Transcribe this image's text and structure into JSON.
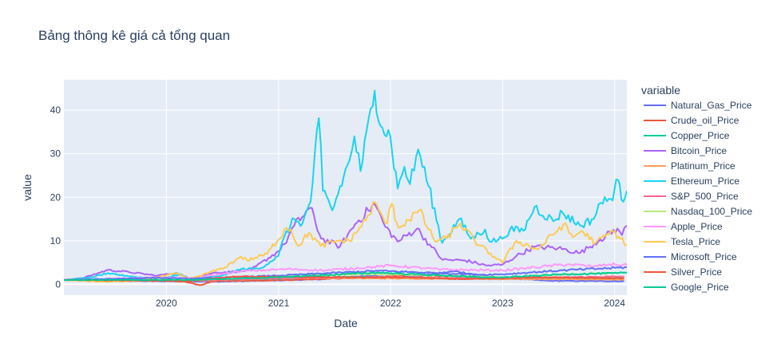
{
  "chart_data": {
    "type": "line",
    "title": "Bảng thông kê giá cả tổng quan",
    "xlabel": "Date",
    "ylabel": "value",
    "x_range": [
      "2019-02-01",
      "2024-02-10"
    ],
    "xticks": [
      "2020",
      "2021",
      "2022",
      "2023",
      "2024"
    ],
    "ylim": [
      -2.5,
      47
    ],
    "yticks": [
      0,
      10,
      20,
      30,
      40
    ],
    "grid": true,
    "legend_title": "variable",
    "legend_position": "right",
    "series": [
      {
        "name": "Natural_Gas_Price",
        "color": "#636efa",
        "points": [
          [
            "2019-02-01",
            1.0
          ],
          [
            "2019-08-01",
            0.8
          ],
          [
            "2020-01-01",
            0.7
          ],
          [
            "2020-06-01",
            0.6
          ],
          [
            "2021-01-01",
            0.9
          ],
          [
            "2021-06-01",
            1.2
          ],
          [
            "2021-10-01",
            1.9
          ],
          [
            "2022-03-01",
            1.7
          ],
          [
            "2022-08-01",
            3.0
          ],
          [
            "2022-12-01",
            1.6
          ],
          [
            "2023-06-01",
            0.8
          ],
          [
            "2024-02-01",
            0.7
          ]
        ]
      },
      {
        "name": "Crude_oil_Price",
        "color": "#EF553B",
        "points": [
          [
            "2019-02-01",
            1.0
          ],
          [
            "2019-10-01",
            1.0
          ],
          [
            "2020-03-01",
            0.6
          ],
          [
            "2020-04-20",
            -0.2
          ],
          [
            "2020-06-01",
            0.7
          ],
          [
            "2021-01-01",
            0.95
          ],
          [
            "2021-10-01",
            1.5
          ],
          [
            "2022-03-01",
            2.1
          ],
          [
            "2022-06-01",
            2.0
          ],
          [
            "2022-12-01",
            1.5
          ],
          [
            "2023-06-01",
            1.3
          ],
          [
            "2024-02-01",
            1.4
          ]
        ]
      },
      {
        "name": "Copper_Price",
        "color": "#00cc96",
        "points": [
          [
            "2019-02-01",
            1.0
          ],
          [
            "2020-03-01",
            0.8
          ],
          [
            "2021-01-01",
            1.3
          ],
          [
            "2021-05-01",
            1.7
          ],
          [
            "2022-03-01",
            1.6
          ],
          [
            "2022-07-01",
            1.3
          ],
          [
            "2023-01-01",
            1.5
          ],
          [
            "2024-02-01",
            1.4
          ]
        ]
      },
      {
        "name": "Bitcoin_Price",
        "color": "#ab63fa",
        "points": [
          [
            "2019-02-01",
            1.0
          ],
          [
            "2019-04-01",
            1.4
          ],
          [
            "2019-06-25",
            3.3
          ],
          [
            "2019-09-01",
            2.8
          ],
          [
            "2019-12-01",
            2.0
          ],
          [
            "2020-02-01",
            2.6
          ],
          [
            "2020-03-15",
            1.4
          ],
          [
            "2020-06-01",
            2.6
          ],
          [
            "2020-10-01",
            3.2
          ],
          [
            "2020-12-31",
            7.6
          ],
          [
            "2021-01-20",
            9.2
          ],
          [
            "2021-02-21",
            13.5
          ],
          [
            "2021-04-14",
            17.6
          ],
          [
            "2021-05-20",
            10.5
          ],
          [
            "2021-07-20",
            8.7
          ],
          [
            "2021-09-07",
            13.8
          ],
          [
            "2021-10-20",
            17.0
          ],
          [
            "2021-11-10",
            18.5
          ],
          [
            "2021-12-15",
            13.2
          ],
          [
            "2022-01-24",
            9.8
          ],
          [
            "2022-03-28",
            12.8
          ],
          [
            "2022-05-15",
            8.5
          ],
          [
            "2022-06-20",
            5.6
          ],
          [
            "2022-09-01",
            5.5
          ],
          [
            "2022-11-10",
            4.3
          ],
          [
            "2022-12-31",
            4.5
          ],
          [
            "2023-02-15",
            6.5
          ],
          [
            "2023-04-14",
            8.6
          ],
          [
            "2023-07-01",
            8.3
          ],
          [
            "2023-09-11",
            7.2
          ],
          [
            "2023-11-15",
            10.3
          ],
          [
            "2024-01-10",
            12.8
          ],
          [
            "2024-01-25",
            11.3
          ],
          [
            "2024-02-10",
            13.5
          ]
        ]
      },
      {
        "name": "Platinum_Price",
        "color": "#FFA15A",
        "points": [
          [
            "2019-02-01",
            1.0
          ],
          [
            "2020-02-01",
            1.2
          ],
          [
            "2020-03-20",
            0.75
          ],
          [
            "2021-02-10",
            1.5
          ],
          [
            "2021-06-01",
            1.4
          ],
          [
            "2022-03-01",
            1.3
          ],
          [
            "2022-12-01",
            1.2
          ],
          [
            "2023-06-01",
            1.15
          ],
          [
            "2024-02-01",
            1.1
          ]
        ]
      },
      {
        "name": "Ethereum_Price",
        "color": "#19d3f3",
        "points": [
          [
            "2019-02-01",
            1.0
          ],
          [
            "2019-05-01",
            1.6
          ],
          [
            "2019-06-25",
            2.6
          ],
          [
            "2019-09-01",
            1.8
          ],
          [
            "2019-12-20",
            1.2
          ],
          [
            "2020-02-15",
            2.4
          ],
          [
            "2020-03-15",
            1.1
          ],
          [
            "2020-07-01",
            2.0
          ],
          [
            "2020-09-01",
            3.5
          ],
          [
            "2020-11-01",
            3.6
          ],
          [
            "2020-12-31",
            6.5
          ],
          [
            "2021-01-20",
            11.0
          ],
          [
            "2021-02-21",
            15.0
          ],
          [
            "2021-03-20",
            14.0
          ],
          [
            "2021-04-15",
            19.0
          ],
          [
            "2021-05-12",
            38.2
          ],
          [
            "2021-05-25",
            21.5
          ],
          [
            "2021-06-25",
            17.0
          ],
          [
            "2021-08-20",
            28.5
          ],
          [
            "2021-09-05",
            34.0
          ],
          [
            "2021-09-25",
            26.0
          ],
          [
            "2021-11-10",
            44.5
          ],
          [
            "2021-12-05",
            36.0
          ],
          [
            "2021-12-31",
            34.0
          ],
          [
            "2022-01-24",
            22.0
          ],
          [
            "2022-02-15",
            27.0
          ],
          [
            "2022-03-05",
            23.0
          ],
          [
            "2022-04-01",
            31.0
          ],
          [
            "2022-05-05",
            22.5
          ],
          [
            "2022-06-18",
            9.5
          ],
          [
            "2022-08-13",
            15.0
          ],
          [
            "2022-09-20",
            10.5
          ],
          [
            "2022-11-05",
            12.6
          ],
          [
            "2022-11-20",
            9.8
          ],
          [
            "2022-12-31",
            10.5
          ],
          [
            "2023-01-25",
            12.6
          ],
          [
            "2023-03-10",
            12.3
          ],
          [
            "2023-04-15",
            17.8
          ],
          [
            "2023-06-15",
            14.5
          ],
          [
            "2023-07-15",
            16.5
          ],
          [
            "2023-09-10",
            13.5
          ],
          [
            "2023-10-25",
            15.0
          ],
          [
            "2023-11-10",
            18.4
          ],
          [
            "2023-12-20",
            19.6
          ],
          [
            "2024-01-12",
            24.0
          ],
          [
            "2024-01-23",
            19.5
          ],
          [
            "2024-02-10",
            21.5
          ]
        ]
      },
      {
        "name": "S&P_500_Price",
        "color": "#FF6692",
        "points": [
          [
            "2019-02-01",
            1.0
          ],
          [
            "2020-02-15",
            1.25
          ],
          [
            "2020-03-23",
            0.85
          ],
          [
            "2021-01-01",
            1.4
          ],
          [
            "2021-12-31",
            1.7
          ],
          [
            "2022-10-01",
            1.3
          ],
          [
            "2023-07-01",
            1.6
          ],
          [
            "2024-02-01",
            1.8
          ]
        ]
      },
      {
        "name": "Nasdaq_100_Price",
        "color": "#B6E880",
        "points": [
          [
            "2019-02-01",
            1.0
          ],
          [
            "2020-02-15",
            1.4
          ],
          [
            "2020-03-23",
            1.05
          ],
          [
            "2021-01-01",
            1.8
          ],
          [
            "2021-11-20",
            2.4
          ],
          [
            "2022-12-31",
            1.6
          ],
          [
            "2023-07-01",
            2.2
          ],
          [
            "2024-02-01",
            2.6
          ]
        ]
      },
      {
        "name": "Apple_Price",
        "color": "#FF97FF",
        "points": [
          [
            "2019-02-01",
            1.0
          ],
          [
            "2019-12-01",
            1.6
          ],
          [
            "2020-03-23",
            1.4
          ],
          [
            "2020-09-01",
            3.0
          ],
          [
            "2021-01-25",
            3.5
          ],
          [
            "2021-06-01",
            3.2
          ],
          [
            "2022-01-04",
            4.3
          ],
          [
            "2022-06-15",
            3.4
          ],
          [
            "2022-12-31",
            3.2
          ],
          [
            "2023-07-31",
            4.6
          ],
          [
            "2023-10-25",
            4.1
          ],
          [
            "2023-12-15",
            4.6
          ],
          [
            "2024-02-10",
            4.4
          ]
        ]
      },
      {
        "name": "Tesla_Price",
        "color": "#FECB52",
        "points": [
          [
            "2019-02-01",
            1.0
          ],
          [
            "2019-06-01",
            0.6
          ],
          [
            "2019-10-01",
            0.75
          ],
          [
            "2020-02-04",
            2.5
          ],
          [
            "2020-03-18",
            1.2
          ],
          [
            "2020-07-10",
            3.9
          ],
          [
            "2020-08-31",
            6.4
          ],
          [
            "2020-09-20",
            5.5
          ],
          [
            "2020-11-25",
            7.0
          ],
          [
            "2021-01-26",
            13.0
          ],
          [
            "2021-02-10",
            12.5
          ],
          [
            "2021-03-05",
            8.8
          ],
          [
            "2021-04-10",
            11.8
          ],
          [
            "2021-05-18",
            8.8
          ],
          [
            "2021-07-15",
            10.0
          ],
          [
            "2021-08-20",
            10.0
          ],
          [
            "2021-10-25",
            16.0
          ],
          [
            "2021-11-04",
            18.8
          ],
          [
            "2021-12-20",
            14.0
          ],
          [
            "2022-01-04",
            18.5
          ],
          [
            "2022-01-27",
            13.0
          ],
          [
            "2022-04-04",
            17.0
          ],
          [
            "2022-05-24",
            10.0
          ],
          [
            "2022-07-01",
            10.5
          ],
          [
            "2022-08-15",
            14.0
          ],
          [
            "2022-10-15",
            9.0
          ],
          [
            "2022-12-31",
            5.0
          ],
          [
            "2023-02-15",
            10.0
          ],
          [
            "2023-04-25",
            8.0
          ],
          [
            "2023-07-18",
            13.8
          ],
          [
            "2023-08-18",
            10.8
          ],
          [
            "2023-09-15",
            12.3
          ],
          [
            "2023-10-31",
            9.5
          ],
          [
            "2023-12-28",
            12.2
          ],
          [
            "2024-01-20",
            10.5
          ],
          [
            "2024-02-10",
            9.0
          ]
        ]
      },
      {
        "name": "Microsoft_Price",
        "color": "#636efa",
        "points": [
          [
            "2019-02-01",
            1.0
          ],
          [
            "2019-12-01",
            1.5
          ],
          [
            "2020-03-20",
            1.3
          ],
          [
            "2020-12-31",
            2.0
          ],
          [
            "2021-11-20",
            3.1
          ],
          [
            "2022-10-25",
            2.2
          ],
          [
            "2022-12-31",
            2.3
          ],
          [
            "2023-07-15",
            3.2
          ],
          [
            "2024-02-10",
            3.9
          ]
        ]
      },
      {
        "name": "Silver_Price",
        "color": "#EF553B",
        "points": [
          [
            "2019-02-01",
            1.0
          ],
          [
            "2020-03-18",
            0.75
          ],
          [
            "2020-08-06",
            1.8
          ],
          [
            "2021-02-01",
            1.7
          ],
          [
            "2022-03-01",
            1.6
          ],
          [
            "2022-09-01",
            1.2
          ],
          [
            "2023-05-01",
            1.6
          ],
          [
            "2024-02-01",
            1.4
          ]
        ]
      },
      {
        "name": "Google_Price",
        "color": "#00cc96",
        "points": [
          [
            "2019-02-01",
            1.0
          ],
          [
            "2020-03-20",
            1.0
          ],
          [
            "2020-12-31",
            1.6
          ],
          [
            "2021-11-18",
            2.7
          ],
          [
            "2022-11-01",
            1.6
          ],
          [
            "2023-01-05",
            1.6
          ],
          [
            "2023-07-15",
            2.3
          ],
          [
            "2024-02-10",
            2.6
          ]
        ]
      }
    ]
  }
}
